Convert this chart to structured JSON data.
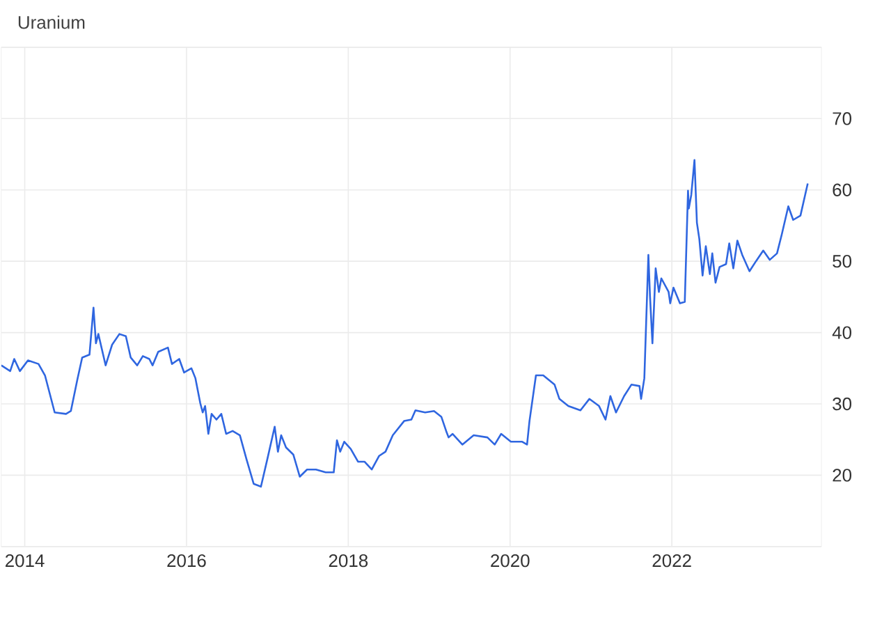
{
  "chart_data": {
    "type": "line",
    "title": "Uranium",
    "x": [
      2013.71,
      2013.82,
      2013.87,
      2013.94,
      2014.04,
      2014.17,
      2014.25,
      2014.37,
      2014.51,
      2014.57,
      2014.65,
      2014.71,
      2014.8,
      2014.85,
      2014.88,
      2014.91,
      2015.0,
      2015.08,
      2015.17,
      2015.25,
      2015.31,
      2015.39,
      2015.46,
      2015.54,
      2015.58,
      2015.65,
      2015.77,
      2015.82,
      2015.91,
      2015.97,
      2016.06,
      2016.11,
      2016.17,
      2016.2,
      2016.23,
      2016.27,
      2016.31,
      2016.37,
      2016.43,
      2016.49,
      2016.57,
      2016.66,
      2016.74,
      2016.83,
      2016.92,
      2017.0,
      2017.09,
      2017.13,
      2017.17,
      2017.23,
      2017.32,
      2017.4,
      2017.49,
      2017.6,
      2017.72,
      2017.82,
      2017.86,
      2017.9,
      2017.95,
      2018.03,
      2018.12,
      2018.2,
      2018.29,
      2018.38,
      2018.46,
      2018.55,
      2018.69,
      2018.78,
      2018.83,
      2018.95,
      2019.06,
      2019.15,
      2019.21,
      2019.24,
      2019.29,
      2019.41,
      2019.55,
      2019.72,
      2019.81,
      2019.89,
      2020.01,
      2020.15,
      2020.21,
      2020.24,
      2020.32,
      2020.41,
      2020.55,
      2020.61,
      2020.72,
      2020.87,
      2020.98,
      2021.1,
      2021.18,
      2021.24,
      2021.31,
      2021.41,
      2021.5,
      2021.6,
      2021.62,
      2021.66,
      2021.71,
      2021.73,
      2021.76,
      2021.8,
      2021.84,
      2021.87,
      2021.96,
      2021.98,
      2022.02,
      2022.1,
      2022.16,
      2022.2,
      2022.21,
      2022.24,
      2022.28,
      2022.31,
      2022.34,
      2022.38,
      2022.42,
      2022.47,
      2022.5,
      2022.54,
      2022.59,
      2022.67,
      2022.71,
      2022.76,
      2022.81,
      2022.87,
      2022.96,
      2023.04,
      2023.13,
      2023.21,
      2023.3,
      2023.36,
      2023.44,
      2023.5,
      2023.59,
      2023.68
    ],
    "values": [
      35.4,
      34.6,
      36.3,
      34.6,
      36.1,
      35.6,
      34.0,
      28.8,
      28.6,
      29.0,
      33.4,
      36.5,
      36.9,
      43.5,
      38.5,
      39.8,
      35.4,
      38.3,
      39.8,
      39.5,
      36.5,
      35.4,
      36.7,
      36.3,
      35.4,
      37.3,
      37.9,
      35.6,
      36.3,
      34.4,
      35.0,
      33.6,
      30.1,
      28.8,
      29.7,
      25.8,
      28.6,
      27.8,
      28.6,
      25.8,
      26.2,
      25.6,
      22.3,
      18.8,
      18.4,
      22.3,
      26.8,
      23.3,
      25.6,
      23.9,
      22.9,
      19.8,
      20.8,
      20.8,
      20.4,
      20.4,
      24.9,
      23.3,
      24.7,
      23.7,
      21.9,
      21.9,
      20.8,
      22.7,
      23.3,
      25.6,
      27.6,
      27.8,
      29.1,
      28.8,
      29.0,
      28.2,
      26.2,
      25.3,
      25.8,
      24.3,
      25.6,
      25.3,
      24.3,
      25.8,
      24.7,
      24.7,
      24.3,
      27.6,
      34.0,
      34.0,
      32.7,
      30.7,
      29.7,
      29.1,
      30.7,
      29.7,
      27.8,
      31.1,
      28.8,
      31.1,
      32.7,
      32.5,
      30.7,
      33.6,
      50.9,
      45.1,
      38.5,
      49.0,
      45.7,
      47.6,
      45.7,
      44.1,
      46.3,
      44.1,
      44.3,
      59.9,
      57.4,
      59.3,
      64.2,
      55.4,
      53.1,
      48.0,
      52.1,
      48.2,
      51.1,
      47.0,
      49.2,
      49.6,
      52.5,
      49.0,
      52.9,
      50.9,
      48.6,
      50.0,
      51.5,
      50.2,
      51.1,
      53.8,
      57.7,
      55.8,
      56.4,
      60.9
    ],
    "color": "#2f66e0",
    "xlim": [
      2013.71,
      2023.85
    ],
    "ylim": [
      10,
      80
    ],
    "xticks": [
      2014,
      2016,
      2018,
      2020,
      2022
    ],
    "yticks": [
      {
        "value": 10,
        "label": null
      },
      20,
      30,
      40,
      50,
      60,
      70,
      {
        "value": 80,
        "label": null
      }
    ],
    "grid": true,
    "marker": "none",
    "line_style": "solid"
  }
}
